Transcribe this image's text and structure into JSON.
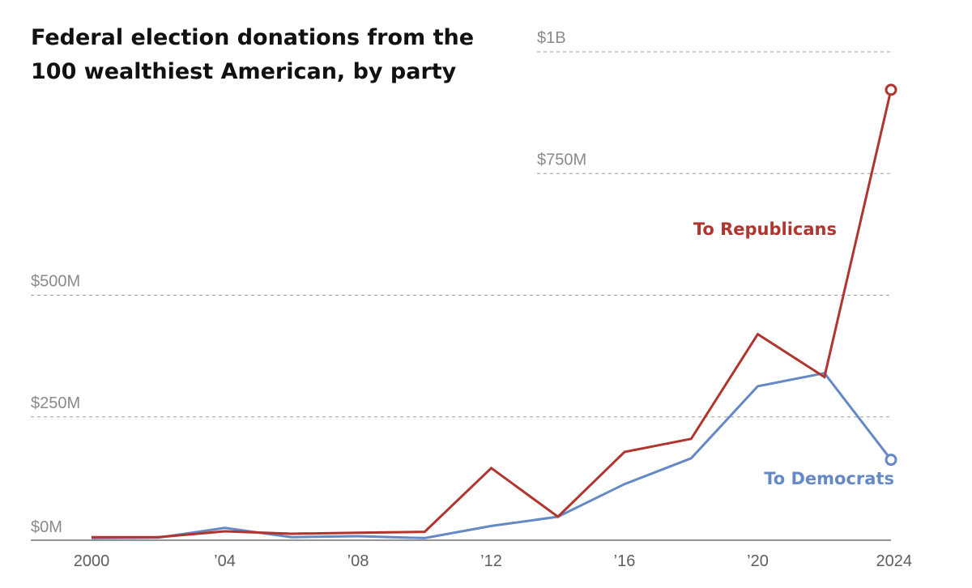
{
  "chart_data": {
    "type": "line",
    "title": "Federal election donations from the 100 wealthiest American, by party",
    "title_lines": [
      "Federal election donations from the",
      "100 wealthiest American, by party"
    ],
    "xlabel": "",
    "ylabel": "",
    "x": [
      2000,
      2002,
      2004,
      2006,
      2008,
      2010,
      2012,
      2014,
      2016,
      2018,
      2020,
      2022,
      2024
    ],
    "xlim": [
      2000,
      2024
    ],
    "ylim": [
      0,
      1000
    ],
    "x_ticks": [
      {
        "value": 2000,
        "label": "2000"
      },
      {
        "value": 2004,
        "label": "’04"
      },
      {
        "value": 2008,
        "label": "’08"
      },
      {
        "value": 2012,
        "label": "’12"
      },
      {
        "value": 2016,
        "label": "’16"
      },
      {
        "value": 2020,
        "label": "’20"
      },
      {
        "value": 2024,
        "label": "2024"
      }
    ],
    "y_ticks": [
      {
        "value": 0,
        "label": "$0M"
      },
      {
        "value": 250,
        "label": "$250M"
      },
      {
        "value": 500,
        "label": "$500M"
      },
      {
        "value": 750,
        "label": "$750M"
      },
      {
        "value": 1000,
        "label": "$1B"
      }
    ],
    "grid": true,
    "legend": "inline labels beside lines",
    "series": [
      {
        "name": "To Republicans",
        "color": "#b0352e",
        "values": [
          3,
          3,
          15,
          10,
          12,
          14,
          145,
          45,
          178,
          205,
          420,
          332,
          922
        ]
      },
      {
        "name": "To Democrats",
        "color": "#6489c6",
        "values": [
          1,
          2,
          22,
          3,
          5,
          1,
          26,
          45,
          112,
          165,
          313,
          340,
          162
        ]
      }
    ]
  }
}
